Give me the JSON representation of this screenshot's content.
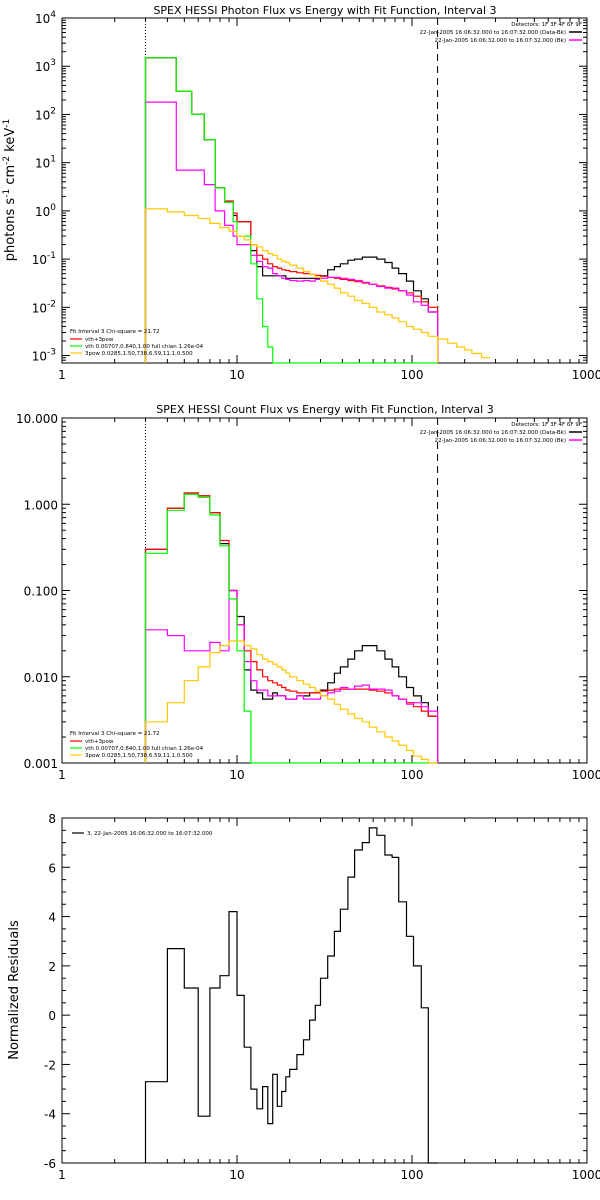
{
  "chart_data": [
    {
      "type": "line",
      "title": "SPEX HESSI Photon Flux vs Energy with Fit Function, Interval 3",
      "xlabel": "",
      "ylabel": "photons s^-1 cm^-2 keV^-1",
      "xscale": "log",
      "yscale": "log",
      "xlim": [
        1,
        1000
      ],
      "ylim": [
        0.0007,
        10000
      ],
      "x_ticks": [
        "1",
        "10",
        "100",
        "1000"
      ],
      "y_ticks": [
        {
          "v": 0.001,
          "base": "10",
          "exp": "-3"
        },
        {
          "v": 0.01,
          "base": "10",
          "exp": "-2"
        },
        {
          "v": 0.1,
          "base": "10",
          "exp": "-1"
        },
        {
          "v": 1,
          "base": "10",
          "exp": "0"
        },
        {
          "v": 10,
          "base": "10",
          "exp": "1"
        },
        {
          "v": 100,
          "base": "10",
          "exp": "2"
        },
        {
          "v": 1000,
          "base": "10",
          "exp": "3"
        },
        {
          "v": 10000,
          "base": "10",
          "exp": "4"
        }
      ],
      "vlines": [
        {
          "x": 3,
          "style": "dotted"
        },
        {
          "x": 140,
          "style": "dashed"
        }
      ],
      "header_lines": [
        "Detectors: 1F 3F 4F 6F 9F",
        "22-Jan-2005 16:06:32.000 to 16:07:32.000 (Data-Bk)",
        "22-Jan-2005 16:06:32.000 to 16:07:32.000 (Bk)"
      ],
      "legend_title": "Fit Interval 3   Chi-square = 21.72",
      "legend": [
        {
          "label": "vth+3pow",
          "color": "#ff0000"
        },
        {
          "label": "vth 0.00707,0.840,1.00   full chian 1.26e-04",
          "color": "#00ff00"
        },
        {
          "label": "3pow 0.0285,1.50,738,6.59,11.1,0.500",
          "color": "#ffc800"
        }
      ],
      "edges": [
        3.0,
        3.5,
        4.0,
        4.5,
        5.0,
        5.5,
        6.0,
        6.5,
        7.0,
        7.5,
        8.0,
        8.5,
        9.0,
        9.5,
        10.0,
        11.0,
        12.0,
        13.0,
        14.0,
        15.0,
        16.0,
        17.0,
        18.0,
        19.0,
        20.0,
        22.0,
        24.0,
        26.0,
        28.0,
        30.0,
        33.0,
        36.0,
        39.0,
        43.0,
        47.0,
        52.0,
        57.0,
        63.0,
        70.0,
        77.0,
        84.0,
        93.0,
        102.0,
        113.0,
        124.0,
        140.0
      ],
      "series": [
        {
          "color": "#000000",
          "values": [
            1500,
            1500,
            1500,
            300,
            300,
            100,
            100,
            30,
            30,
            3,
            3,
            1.5,
            1.5,
            0.8,
            0.6,
            0.6,
            0.15,
            0.07,
            0.045,
            0.045,
            0.045,
            0.045,
            0.045,
            0.04,
            0.04,
            0.04,
            0.04,
            0.04,
            0.04,
            0.045,
            0.06,
            0.07,
            0.08,
            0.095,
            0.1,
            0.11,
            0.11,
            0.1,
            0.085,
            0.065,
            0.05,
            0.035,
            0.022,
            0.015,
            0.008
          ]
        },
        {
          "color": "#ff0000",
          "values": [
            1500,
            1500,
            1500,
            300,
            300,
            100,
            100,
            30,
            30,
            3,
            3,
            1.6,
            1.6,
            0.9,
            0.6,
            0.6,
            0.2,
            0.12,
            0.1,
            0.08,
            0.07,
            0.065,
            0.06,
            0.058,
            0.055,
            0.052,
            0.05,
            0.048,
            0.046,
            0.044,
            0.042,
            0.04,
            0.038,
            0.036,
            0.034,
            0.032,
            0.03,
            0.028,
            0.026,
            0.024,
            0.022,
            0.02,
            0.017,
            0.013,
            0.01
          ]
        },
        {
          "color": "#ff00ff",
          "values": [
            180,
            180,
            180,
            7,
            7,
            7,
            7,
            3.5,
            3.5,
            1,
            1,
            0.5,
            0.5,
            0.3,
            0.2,
            0.2,
            0.12,
            0.09,
            0.07,
            0.065,
            0.05,
            0.045,
            0.04,
            0.038,
            0.036,
            0.035,
            0.036,
            0.035,
            0.038,
            0.04,
            0.042,
            0.042,
            0.04,
            0.038,
            0.036,
            0.033,
            0.03,
            0.027,
            0.025,
            0.025,
            0.022,
            0.018,
            0.013,
            0.011,
            0.008
          ]
        },
        {
          "color": "#00ff00",
          "values": [
            1500,
            1500,
            1500,
            300,
            300,
            100,
            100,
            30,
            30,
            3,
            3,
            1.5,
            1.5,
            0.6,
            0.3,
            0.3,
            0.08,
            0.015,
            0.004,
            0.0015,
            0.0007,
            0.0007,
            0.0007,
            0.0007,
            0.0007,
            0.0007,
            0.0007,
            0.0007,
            0.0007,
            0.0007,
            0.0007,
            0.0007,
            0.0007,
            0.0007,
            0.0007,
            0.0007,
            0.0007,
            0.0007,
            0.0007,
            0.0007,
            0.0007,
            0.0007,
            0.0007,
            0.0007,
            0.0007
          ]
        },
        {
          "color": "#ffc800",
          "values": [
            1.1,
            1.1,
            0.95,
            0.95,
            0.8,
            0.8,
            0.7,
            0.7,
            0.55,
            0.55,
            0.45,
            0.45,
            0.38,
            0.38,
            0.3,
            0.25,
            0.2,
            0.18,
            0.15,
            0.13,
            0.12,
            0.1,
            0.09,
            0.085,
            0.075,
            0.065,
            0.055,
            0.048,
            0.042,
            0.035,
            0.03,
            0.025,
            0.02,
            0.017,
            0.014,
            0.012,
            0.01,
            0.008,
            0.007,
            0.006,
            0.005,
            0.004,
            0.0035,
            0.003,
            0.0025
          ]
        }
      ],
      "tail": {
        "color": "#ffc800",
        "edges": [
          140,
          160,
          180,
          200,
          220,
          250,
          280
        ],
        "values": [
          0.0022,
          0.0018,
          0.0015,
          0.0013,
          0.0011,
          0.0009
        ]
      }
    },
    {
      "type": "line",
      "title": "SPEX HESSI Count Flux vs Energy with Fit Function, Interval 3",
      "xlabel": "",
      "ylabel": "",
      "xscale": "log",
      "yscale": "log",
      "xlim": [
        1,
        1000
      ],
      "ylim": [
        0.001,
        10
      ],
      "x_ticks": [
        "1",
        "10",
        "100",
        "1000"
      ],
      "y_ticks": [
        {
          "v": 0.001,
          "label": "0.001"
        },
        {
          "v": 0.01,
          "label": "0.010"
        },
        {
          "v": 0.1,
          "label": "0.100"
        },
        {
          "v": 1,
          "label": "1.000"
        },
        {
          "v": 10,
          "label": "10.000"
        }
      ],
      "vlines": [
        {
          "x": 3,
          "style": "dotted"
        },
        {
          "x": 140,
          "style": "dashed"
        }
      ],
      "header_lines": [
        "Detectors: 1F 3F 4F 6F 9F",
        "22-Jan-2005 16:06:32.000 to 16:07:32.000 (Data-Bk)",
        "22-Jan-2005 16:06:32.000 to 16:07:32.000 (Bk)"
      ],
      "legend_title": "Fit Interval 3   Chi-square = 21.72",
      "legend": [
        {
          "label": "vth+3pow",
          "color": "#ff0000"
        },
        {
          "label": "vth 0.00707,0.840,1.00   full chian 1.26e-04",
          "color": "#00ff00"
        },
        {
          "label": "3pow 0.0285,1.50,738,6.59,11.1,0.500",
          "color": "#ffc800"
        }
      ],
      "edges": [
        3.0,
        3.5,
        4.0,
        4.5,
        5.0,
        5.5,
        6.0,
        6.5,
        7.0,
        7.5,
        8.0,
        8.5,
        9.0,
        9.5,
        10.0,
        11.0,
        12.0,
        13.0,
        14.0,
        15.0,
        16.0,
        17.0,
        18.0,
        19.0,
        20.0,
        22.0,
        24.0,
        26.0,
        28.0,
        30.0,
        33.0,
        36.0,
        39.0,
        43.0,
        47.0,
        52.0,
        57.0,
        63.0,
        70.0,
        77.0,
        84.0,
        93.0,
        102.0,
        113.0,
        124.0,
        140.0
      ],
      "series": [
        {
          "color": "#000000",
          "values": [
            0.3,
            0.3,
            0.9,
            0.9,
            1.35,
            1.35,
            1.25,
            1.25,
            0.8,
            0.8,
            0.35,
            0.35,
            0.1,
            0.1,
            0.05,
            0.012,
            0.007,
            0.0065,
            0.0055,
            0.0055,
            0.0065,
            0.006,
            0.006,
            0.0055,
            0.0055,
            0.006,
            0.006,
            0.0065,
            0.0065,
            0.007,
            0.0085,
            0.011,
            0.013,
            0.016,
            0.02,
            0.023,
            0.023,
            0.02,
            0.016,
            0.013,
            0.01,
            0.0075,
            0.006,
            0.005,
            0.0035
          ]
        },
        {
          "color": "#ff0000",
          "values": [
            0.3,
            0.3,
            0.9,
            0.9,
            1.35,
            1.35,
            1.25,
            1.25,
            0.8,
            0.8,
            0.38,
            0.38,
            0.1,
            0.1,
            0.04,
            0.02,
            0.015,
            0.012,
            0.01,
            0.009,
            0.0085,
            0.008,
            0.0075,
            0.007,
            0.0068,
            0.0065,
            0.0065,
            0.0065,
            0.0065,
            0.0068,
            0.007,
            0.0072,
            0.0072,
            0.0072,
            0.0072,
            0.0072,
            0.007,
            0.0068,
            0.0065,
            0.006,
            0.0055,
            0.005,
            0.0045,
            0.004,
            0.0035
          ]
        },
        {
          "color": "#ff00ff",
          "values": [
            0.035,
            0.035,
            0.03,
            0.03,
            0.02,
            0.02,
            0.02,
            0.02,
            0.025,
            0.025,
            0.02,
            0.02,
            0.1,
            0.1,
            0.04,
            0.015,
            0.009,
            0.007,
            0.007,
            0.006,
            0.006,
            0.006,
            0.006,
            0.0055,
            0.0055,
            0.006,
            0.0055,
            0.0055,
            0.0055,
            0.006,
            0.0065,
            0.0068,
            0.0075,
            0.0072,
            0.0078,
            0.008,
            0.0072,
            0.0072,
            0.007,
            0.006,
            0.0055,
            0.0048,
            0.005,
            0.0045,
            0.004
          ]
        },
        {
          "color": "#00ff00",
          "values": [
            0.27,
            0.27,
            0.85,
            0.85,
            1.3,
            1.3,
            1.2,
            1.2,
            0.75,
            0.75,
            0.33,
            0.33,
            0.08,
            0.08,
            0.02,
            0.004,
            0.0008,
            0.0008,
            0.0008,
            0.0008,
            0.0008,
            0.0008,
            0.0008,
            0.0008,
            0.0008,
            0.0008,
            0.0008,
            0.0008,
            0.0008,
            0.0008,
            0.0008,
            0.0008,
            0.0008,
            0.0008,
            0.0008,
            0.0008,
            0.0008,
            0.0008,
            0.0008,
            0.0008,
            0.0008,
            0.0008,
            0.0008,
            0.0008,
            0.0008
          ]
        },
        {
          "color": "#ffc800",
          "values": [
            0.003,
            0.003,
            0.005,
            0.005,
            0.009,
            0.009,
            0.013,
            0.013,
            0.019,
            0.019,
            0.023,
            0.023,
            0.026,
            0.026,
            0.026,
            0.023,
            0.021,
            0.018,
            0.016,
            0.015,
            0.014,
            0.013,
            0.012,
            0.011,
            0.01,
            0.009,
            0.0082,
            0.0075,
            0.0068,
            0.006,
            0.0055,
            0.0048,
            0.0042,
            0.0037,
            0.0033,
            0.003,
            0.0026,
            0.0023,
            0.002,
            0.0018,
            0.0016,
            0.0014,
            0.0012,
            0.0011,
            0.001
          ]
        }
      ]
    },
    {
      "type": "line",
      "title": "",
      "xlabel": "",
      "ylabel": "Normalized Residuals",
      "xscale": "log",
      "yscale": "linear",
      "xlim": [
        1,
        1000
      ],
      "ylim": [
        -6,
        8
      ],
      "x_ticks": [
        "1",
        "10",
        "100",
        "1000"
      ],
      "y_ticks": [
        "-6",
        "-4",
        "-2",
        "0",
        "2",
        "4",
        "6",
        "8"
      ],
      "legend": [
        {
          "label": "3, 22-Jan-2005 16:06:32.000 to 16:07:32.000",
          "color": "#000000"
        }
      ],
      "edges": [
        3.0,
        4.0,
        5.0,
        6.0,
        7.0,
        8.0,
        9.0,
        10.0,
        11.0,
        12.0,
        13.0,
        14.0,
        15.0,
        16.0,
        17.0,
        18.0,
        19.0,
        20.0,
        22.0,
        24.0,
        26.0,
        28.0,
        30.0,
        33.0,
        36.0,
        39.0,
        43.0,
        47.0,
        52.0,
        57.0,
        63.0,
        70.0,
        77.0,
        84.0,
        93.0,
        102.0,
        113.0,
        124.0,
        140.0
      ],
      "series": [
        {
          "color": "#000000",
          "values": [
            -2.7,
            2.7,
            1.1,
            -4.1,
            1.1,
            1.6,
            4.2,
            0.8,
            -1.3,
            -3.0,
            -3.8,
            -2.9,
            -4.4,
            -2.4,
            -3.7,
            -3.1,
            -2.5,
            -2.2,
            -1.6,
            -1.0,
            -0.2,
            0.4,
            1.5,
            2.4,
            3.4,
            4.3,
            5.6,
            6.7,
            7.0,
            7.6,
            7.3,
            6.5,
            6.4,
            4.6,
            3.2,
            2.0,
            0.3,
            -6.0
          ]
        }
      ]
    }
  ]
}
